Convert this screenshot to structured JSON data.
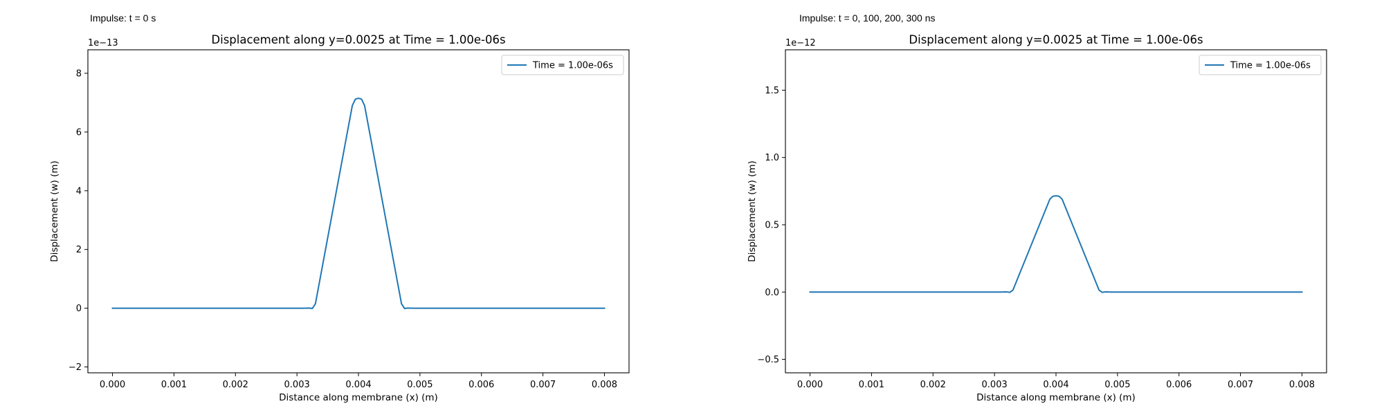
{
  "captions": [
    "Impulse: t = 0 s",
    "Impulse: t = 0, 100, 200, 300 ns"
  ],
  "chart_data": [
    {
      "type": "line",
      "title": "Displacement along y=0.0025 at Time = 1.00e-06s",
      "xlabel": "Distance along membrane (x) (m)",
      "ylabel": "Displacement (w) (m)",
      "offset_text": "1e−13",
      "xlim": [
        -0.0004,
        0.0084
      ],
      "ylim": [
        -2.2e-13,
        8.8e-13
      ],
      "xticks": [
        0.0,
        0.001,
        0.002,
        0.003,
        0.004,
        0.005,
        0.006,
        0.007,
        0.008
      ],
      "xtick_labels": [
        "0.000",
        "0.001",
        "0.002",
        "0.003",
        "0.004",
        "0.005",
        "0.006",
        "0.007",
        "0.008"
      ],
      "yticks": [
        -2e-13,
        0,
        2e-13,
        4e-13,
        6e-13,
        8e-13
      ],
      "ytick_labels": [
        "−2",
        "0",
        "2",
        "4",
        "6",
        "8"
      ],
      "grid": false,
      "legend_position": "upper-right",
      "series": [
        {
          "name": "Time = 1.00e-06s",
          "color": "#1f77b4",
          "x": [
            0.0,
            0.001,
            0.002,
            0.003,
            0.0031,
            0.0032,
            0.00325,
            0.0033,
            0.0039,
            0.00395,
            0.004,
            0.00405,
            0.0041,
            0.0047,
            0.00475,
            0.0048,
            0.0049,
            0.005,
            0.006,
            0.007,
            0.008
          ],
          "y": [
            0,
            0,
            0,
            0,
            0,
            5e-16,
            -1e-15,
            1.5e-14,
            6.9e-13,
            7.12e-13,
            7.15e-13,
            7.12e-13,
            6.9e-13,
            1.5e-14,
            -1e-15,
            5e-16,
            0,
            0,
            0,
            0,
            0
          ]
        }
      ]
    },
    {
      "type": "line",
      "title": "Displacement along y=0.0025 at Time = 1.00e-06s",
      "xlabel": "Distance along membrane (x) (m)",
      "ylabel": "Displacement (w) (m)",
      "offset_text": "1e−12",
      "xlim": [
        -0.0004,
        0.0084
      ],
      "ylim": [
        -6e-13,
        1.8e-12
      ],
      "xticks": [
        0.0,
        0.001,
        0.002,
        0.003,
        0.004,
        0.005,
        0.006,
        0.007,
        0.008
      ],
      "xtick_labels": [
        "0.000",
        "0.001",
        "0.002",
        "0.003",
        "0.004",
        "0.005",
        "0.006",
        "0.007",
        "0.008"
      ],
      "yticks": [
        -5e-13,
        0,
        5e-13,
        1e-12,
        1.5e-12
      ],
      "ytick_labels": [
        "−0.5",
        "0.0",
        "0.5",
        "1.0",
        "1.5"
      ],
      "grid": false,
      "legend_position": "upper-right",
      "series": [
        {
          "name": "Time = 1.00e-06s",
          "color": "#1f77b4",
          "x": [
            0.0,
            0.001,
            0.002,
            0.003,
            0.0031,
            0.0032,
            0.00325,
            0.0033,
            0.0039,
            0.00395,
            0.004,
            0.00405,
            0.0041,
            0.0047,
            0.00475,
            0.0048,
            0.0049,
            0.005,
            0.006,
            0.007,
            0.008
          ],
          "y": [
            0,
            0,
            0,
            0,
            0,
            1e-15,
            -2e-15,
            1.5e-14,
            6.9e-13,
            7.12e-13,
            7.15e-13,
            7.12e-13,
            6.9e-13,
            1.5e-14,
            -2e-15,
            1e-15,
            0,
            0,
            0,
            0,
            0
          ]
        }
      ]
    }
  ]
}
